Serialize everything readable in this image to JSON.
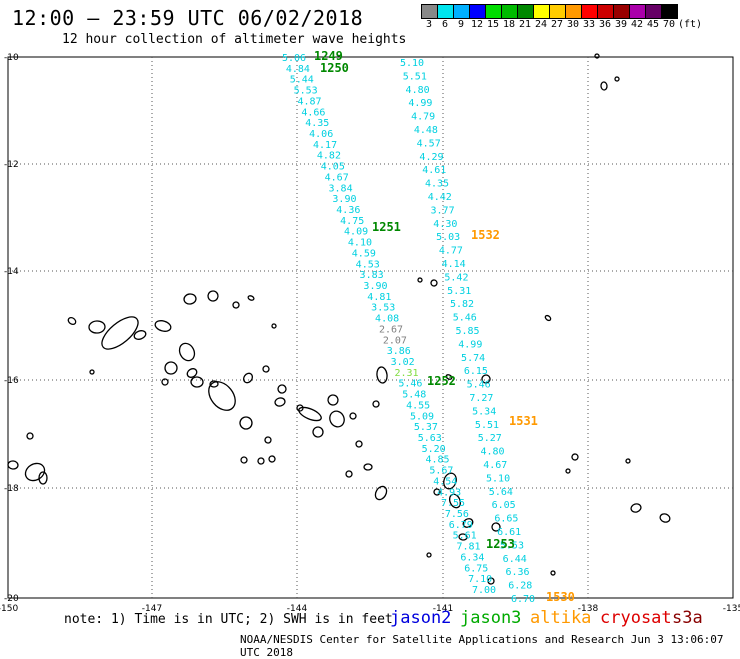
{
  "header": {
    "title": "12:00 – 23:59 UTC 06/02/2018",
    "subtitle": "12 hour collection of altimeter wave heights"
  },
  "legend": {
    "unit": "(ft)",
    "bins": [
      {
        "label": "3",
        "color": "#888888"
      },
      {
        "label": "6",
        "color": "#00e5ee"
      },
      {
        "label": "9",
        "color": "#00b0ff"
      },
      {
        "label": "12",
        "color": "#0000ff"
      },
      {
        "label": "15",
        "color": "#00dd00"
      },
      {
        "label": "18",
        "color": "#00bb00"
      },
      {
        "label": "21",
        "color": "#008800"
      },
      {
        "label": "24",
        "color": "#ffff00"
      },
      {
        "label": "27",
        "color": "#ffcc00"
      },
      {
        "label": "30",
        "color": "#ff9900"
      },
      {
        "label": "33",
        "color": "#ff0000"
      },
      {
        "label": "36",
        "color": "#cc0000"
      },
      {
        "label": "39",
        "color": "#990000"
      },
      {
        "label": "42",
        "color": "#aa00aa"
      },
      {
        "label": "45",
        "color": "#660066"
      },
      {
        "label": "70",
        "color": "#000000"
      }
    ]
  },
  "axes": {
    "lat_labels": [
      "-10",
      "-12",
      "-14",
      "-16",
      "-18",
      "-20"
    ],
    "lon_labels": [
      "-150",
      "-147",
      "-144",
      "-141",
      "-138",
      "-135"
    ]
  },
  "tracks": {
    "track_a": {
      "color": "#00d0e0",
      "values": [
        "5.06",
        "4.84",
        "5.44",
        "5.53",
        "4.87",
        "4.66",
        "4.35",
        "4.06",
        "4.17",
        "4.82",
        "4.05",
        "4.67",
        "3.84",
        "3.90",
        "4.36",
        "4.75",
        "4.09",
        "4.10",
        "4.59",
        "4.53",
        "3.83",
        "3.90",
        "4.81",
        "3.53",
        "4.08",
        "2.67",
        "2.07",
        "3.86",
        "3.02",
        "2.31",
        "5.46",
        "5.48",
        "4.55",
        "5.09",
        "5.37",
        "5.63",
        "5.20",
        "4.85",
        "5.67",
        "4.54",
        "4.93",
        "7.55",
        "7.56",
        "6.79",
        "5.61",
        "7.81",
        "6.34",
        "6.75",
        "7.10",
        "7.00"
      ]
    },
    "track_b": {
      "color": "#00d0e0",
      "values": [
        "5.10",
        "5.51",
        "4.80",
        "4.99",
        "4.79",
        "4.48",
        "4.57",
        "4.29",
        "4.61",
        "4.35",
        "4.42",
        "3.77",
        "4.30",
        "5.03",
        "4.77",
        "4.14",
        "5.42",
        "5.31",
        "5.82",
        "5.46",
        "5.85",
        "4.99",
        "5.74",
        "6.15",
        "5.46",
        "7.27",
        "5.34",
        "5.51",
        "5.27",
        "4.80",
        "4.67",
        "5.10",
        "5.64",
        "6.05",
        "6.65",
        "6.61",
        "5.53",
        "6.44",
        "6.36",
        "6.28",
        "6.70"
      ]
    },
    "gray_values": [
      "2.67",
      "2.07"
    ],
    "green_value": "2.31"
  },
  "pass_times": [
    {
      "label": "1249",
      "color": "#008800"
    },
    {
      "label": "1250",
      "color": "#008800"
    },
    {
      "label": "1251",
      "color": "#008800"
    },
    {
      "label": "1252",
      "color": "#008800"
    },
    {
      "label": "1253",
      "color": "#008800"
    },
    {
      "label": "1532",
      "color": "#ff9900"
    },
    {
      "label": "1531",
      "color": "#ff9900"
    },
    {
      "label": "1530",
      "color": "#ff9900"
    }
  ],
  "footer": {
    "note": "note: 1) Time is in UTC; 2) SWH is in feet",
    "satellites": [
      {
        "label": "jason2",
        "color": "#0000dd"
      },
      {
        "label": "jason3",
        "color": "#00aa00"
      },
      {
        "label": "altika",
        "color": "#ff9900"
      },
      {
        "label": "cryosat",
        "color": "#dd0000"
      },
      {
        "label": "s3a",
        "color": "#880000"
      }
    ],
    "credit": "NOAA/NESDIS Center for Satellite Applications and Research   Jun  3 13:06:07 UTC 2018"
  }
}
